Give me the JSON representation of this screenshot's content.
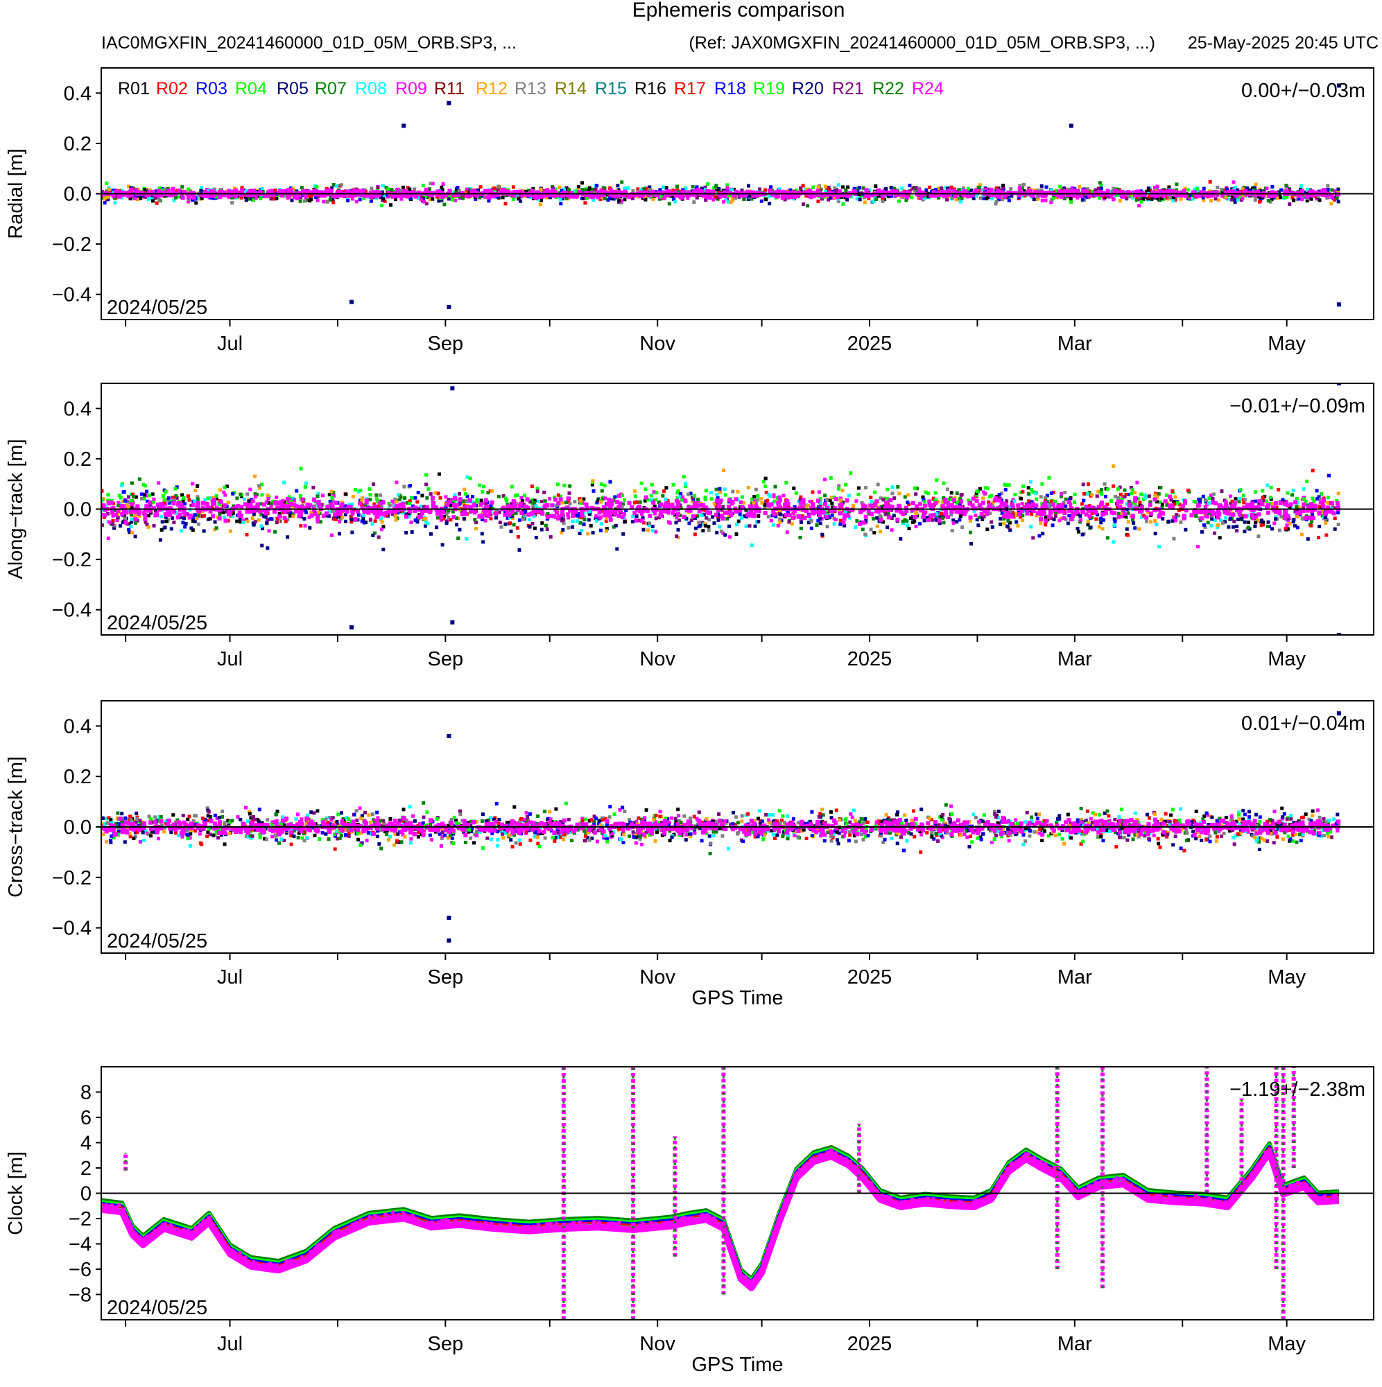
{
  "header": {
    "title": "Ephemeris comparison",
    "left_file": "IAC0MGXFIN_20241460000_01D_05M_ORB.SP3, ...",
    "ref_file": "(Ref: JAX0MGXFIN_20241460000_01D_05M_ORB.SP3, ...)",
    "timestamp": "25-May-2025 20:45 UTC"
  },
  "legend": [
    {
      "name": "R01",
      "color": "#000000"
    },
    {
      "name": "R02",
      "color": "#ff0000"
    },
    {
      "name": "R03",
      "color": "#0000ff"
    },
    {
      "name": "R04",
      "color": "#00ff00"
    },
    {
      "name": "R05",
      "color": "#000080"
    },
    {
      "name": "R07",
      "color": "#008000"
    },
    {
      "name": "R08",
      "color": "#00ffff"
    },
    {
      "name": "R09",
      "color": "#ff00ff"
    },
    {
      "name": "R11",
      "color": "#800000"
    },
    {
      "name": "R12",
      "color": "#ffa500"
    },
    {
      "name": "R13",
      "color": "#808080"
    },
    {
      "name": "R14",
      "color": "#808000"
    },
    {
      "name": "R15",
      "color": "#008080"
    },
    {
      "name": "R16",
      "color": "#000000"
    },
    {
      "name": "R17",
      "color": "#ff0000"
    },
    {
      "name": "R18",
      "color": "#0000ff"
    },
    {
      "name": "R19",
      "color": "#00ff00"
    },
    {
      "name": "R20",
      "color": "#000080"
    },
    {
      "name": "R21",
      "color": "#800080"
    },
    {
      "name": "R22",
      "color": "#008000"
    },
    {
      "name": "R24",
      "color": "#ff00ff"
    }
  ],
  "chart_data": [
    {
      "type": "scatter",
      "ylabel": "Radial [m]",
      "ylim": [
        -0.5,
        0.5
      ],
      "yticks": [
        0.4,
        0.2,
        0.0,
        -0.2,
        -0.4
      ],
      "yticklabels": [
        "0.4",
        "0.2",
        "0.0",
        "−0.2",
        "−0.4"
      ],
      "xlim": [
        "2024-05-25",
        "2025-05-26"
      ],
      "xticks": [
        {
          "date": "2024-07-01",
          "label": "Jul"
        },
        {
          "date": "2024-09-01",
          "label": "Sep"
        },
        {
          "date": "2024-11-01",
          "label": "Nov"
        },
        {
          "date": "2025-01-01",
          "label": "2025"
        },
        {
          "date": "2025-03-01",
          "label": "Mar"
        },
        {
          "date": "2025-05-01",
          "label": "May"
        }
      ],
      "start_label": "2024/05/25",
      "stats": "0.00+/−0.03m",
      "xlabel": "",
      "series_profile": {
        "spread": 0.05,
        "outliers": [
          {
            "date": "2024-08-20",
            "value": 0.27
          },
          {
            "date": "2024-09-02",
            "value": 0.36
          },
          {
            "date": "2024-09-02",
            "value": -0.45
          },
          {
            "date": "2024-08-05",
            "value": -0.43
          },
          {
            "date": "2025-02-28",
            "value": 0.27
          },
          {
            "date": "2025-05-16",
            "value": 0.43
          },
          {
            "date": "2025-05-16",
            "value": -0.44
          }
        ]
      }
    },
    {
      "type": "scatter",
      "ylabel": "Along−track [m]",
      "ylim": [
        -0.5,
        0.5
      ],
      "yticks": [
        0.4,
        0.2,
        0.0,
        -0.2,
        -0.4
      ],
      "yticklabels": [
        "0.4",
        "0.2",
        "0.0",
        "−0.2",
        "−0.4"
      ],
      "xlim": [
        "2024-05-25",
        "2025-05-26"
      ],
      "xticks": [
        {
          "date": "2024-07-01",
          "label": "Jul"
        },
        {
          "date": "2024-09-01",
          "label": "Sep"
        },
        {
          "date": "2024-11-01",
          "label": "Nov"
        },
        {
          "date": "2025-01-01",
          "label": "2025"
        },
        {
          "date": "2025-03-01",
          "label": "Mar"
        },
        {
          "date": "2025-05-01",
          "label": "May"
        }
      ],
      "start_label": "2024/05/25",
      "stats": "−0.01+/−0.09m",
      "xlabel": "",
      "series_profile": {
        "spread": 0.15,
        "outliers": [
          {
            "date": "2024-09-03",
            "value": 0.48
          },
          {
            "date": "2024-09-03",
            "value": -0.45
          },
          {
            "date": "2024-08-05",
            "value": -0.47
          },
          {
            "date": "2025-05-16",
            "value": 0.5
          },
          {
            "date": "2025-05-16",
            "value": -0.5
          }
        ]
      }
    },
    {
      "type": "scatter",
      "ylabel": "Cross−track [m]",
      "ylim": [
        -0.5,
        0.5
      ],
      "yticks": [
        0.4,
        0.2,
        0.0,
        -0.2,
        -0.4
      ],
      "yticklabels": [
        "0.4",
        "0.2",
        "0.0",
        "−0.2",
        "−0.4"
      ],
      "xlim": [
        "2024-05-25",
        "2025-05-26"
      ],
      "xticks": [
        {
          "date": "2024-07-01",
          "label": "Jul"
        },
        {
          "date": "2024-09-01",
          "label": "Sep"
        },
        {
          "date": "2024-11-01",
          "label": "Nov"
        },
        {
          "date": "2025-01-01",
          "label": "2025"
        },
        {
          "date": "2025-03-01",
          "label": "Mar"
        },
        {
          "date": "2025-05-01",
          "label": "May"
        }
      ],
      "start_label": "2024/05/25",
      "stats": "0.01+/−0.04m",
      "xlabel": "GPS Time",
      "series_profile": {
        "spread": 0.1,
        "outliers": [
          {
            "date": "2024-09-02",
            "value": 0.36
          },
          {
            "date": "2024-09-02",
            "value": -0.45
          },
          {
            "date": "2024-09-02",
            "value": -0.36
          },
          {
            "date": "2025-05-16",
            "value": 0.45
          }
        ]
      }
    },
    {
      "type": "scatter",
      "ylabel": "Clock [m]",
      "ylim": [
        -10,
        10
      ],
      "yticks": [
        8,
        6,
        4,
        2,
        0,
        -2,
        -4,
        -6,
        -8
      ],
      "yticklabels": [
        "8",
        "6",
        "4",
        "2",
        "0",
        "−2",
        "−4",
        "−6",
        "−8"
      ],
      "xlim": [
        "2024-05-25",
        "2025-05-26"
      ],
      "xticks": [
        {
          "date": "2024-07-01",
          "label": "Jul"
        },
        {
          "date": "2024-09-01",
          "label": "Sep"
        },
        {
          "date": "2024-11-01",
          "label": "Nov"
        },
        {
          "date": "2025-01-01",
          "label": "2025"
        },
        {
          "date": "2025-03-01",
          "label": "Mar"
        },
        {
          "date": "2025-05-01",
          "label": "May"
        }
      ],
      "start_label": "2024/05/25",
      "stats": "−1.19+/−2.38m",
      "xlabel": "GPS Time",
      "trend": [
        {
          "date": "2024-05-25",
          "value": -1.0
        },
        {
          "date": "2024-05-31",
          "value": -1.2
        },
        {
          "date": "2024-06-03",
          "value": -3.0
        },
        {
          "date": "2024-06-06",
          "value": -3.8
        },
        {
          "date": "2024-06-12",
          "value": -2.5
        },
        {
          "date": "2024-06-20",
          "value": -3.2
        },
        {
          "date": "2024-06-25",
          "value": -2.0
        },
        {
          "date": "2024-07-01",
          "value": -4.5
        },
        {
          "date": "2024-07-07",
          "value": -5.5
        },
        {
          "date": "2024-07-15",
          "value": -5.8
        },
        {
          "date": "2024-07-23",
          "value": -5.0
        },
        {
          "date": "2024-07-31",
          "value": -3.2
        },
        {
          "date": "2024-08-10",
          "value": -2.0
        },
        {
          "date": "2024-08-20",
          "value": -1.7
        },
        {
          "date": "2024-08-28",
          "value": -2.4
        },
        {
          "date": "2024-09-05",
          "value": -2.2
        },
        {
          "date": "2024-09-15",
          "value": -2.5
        },
        {
          "date": "2024-09-25",
          "value": -2.7
        },
        {
          "date": "2024-10-05",
          "value": -2.5
        },
        {
          "date": "2024-10-15",
          "value": -2.4
        },
        {
          "date": "2024-10-25",
          "value": -2.6
        },
        {
          "date": "2024-11-05",
          "value": -2.3
        },
        {
          "date": "2024-11-10",
          "value": -2.0
        },
        {
          "date": "2024-11-15",
          "value": -1.8
        },
        {
          "date": "2024-11-20",
          "value": -2.5
        },
        {
          "date": "2024-11-25",
          "value": -6.5
        },
        {
          "date": "2024-11-28",
          "value": -7.2
        },
        {
          "date": "2024-12-01",
          "value": -6.0
        },
        {
          "date": "2024-12-06",
          "value": -2.0
        },
        {
          "date": "2024-12-11",
          "value": 1.5
        },
        {
          "date": "2024-12-16",
          "value": 2.8
        },
        {
          "date": "2024-12-21",
          "value": 3.2
        },
        {
          "date": "2024-12-26",
          "value": 2.5
        },
        {
          "date": "2024-12-30",
          "value": 1.5
        },
        {
          "date": "2025-01-04",
          "value": -0.2
        },
        {
          "date": "2025-01-10",
          "value": -0.8
        },
        {
          "date": "2025-01-17",
          "value": -0.5
        },
        {
          "date": "2025-01-24",
          "value": -0.7
        },
        {
          "date": "2025-01-31",
          "value": -0.8
        },
        {
          "date": "2025-02-05",
          "value": -0.2
        },
        {
          "date": "2025-02-10",
          "value": 2.0
        },
        {
          "date": "2025-02-15",
          "value": 3.0
        },
        {
          "date": "2025-02-20",
          "value": 2.2
        },
        {
          "date": "2025-02-25",
          "value": 1.5
        },
        {
          "date": "2025-03-02",
          "value": 0.0
        },
        {
          "date": "2025-03-08",
          "value": 0.8
        },
        {
          "date": "2025-03-15",
          "value": 1.0
        },
        {
          "date": "2025-03-22",
          "value": -0.2
        },
        {
          "date": "2025-03-30",
          "value": -0.4
        },
        {
          "date": "2025-04-07",
          "value": -0.5
        },
        {
          "date": "2025-04-14",
          "value": -0.8
        },
        {
          "date": "2025-04-21",
          "value": 1.5
        },
        {
          "date": "2025-04-26",
          "value": 3.5
        },
        {
          "date": "2025-04-30",
          "value": 0.2
        },
        {
          "date": "2025-05-06",
          "value": 0.8
        },
        {
          "date": "2025-05-10",
          "value": -0.4
        },
        {
          "date": "2025-05-16",
          "value": -0.3
        }
      ],
      "spikes": [
        {
          "date": "2024-06-01",
          "from": 1.8,
          "to": 3.2
        },
        {
          "date": "2024-10-05",
          "from": -10,
          "to": 10
        },
        {
          "date": "2024-10-25",
          "from": -10,
          "to": 10
        },
        {
          "date": "2024-11-06",
          "from": -5,
          "to": 4.5
        },
        {
          "date": "2024-11-20",
          "from": -8,
          "to": 10
        },
        {
          "date": "2024-12-29",
          "from": 0,
          "to": 5.5
        },
        {
          "date": "2025-02-24",
          "from": -6,
          "to": 10
        },
        {
          "date": "2025-03-09",
          "from": -7.5,
          "to": 10
        },
        {
          "date": "2025-04-08",
          "from": 0,
          "to": 10
        },
        {
          "date": "2025-04-18",
          "from": 0,
          "to": 7.5
        },
        {
          "date": "2025-04-28",
          "from": -6,
          "to": 10
        },
        {
          "date": "2025-04-30",
          "from": -10,
          "to": 10
        },
        {
          "date": "2025-05-03",
          "from": 2,
          "to": 10
        }
      ]
    }
  ]
}
